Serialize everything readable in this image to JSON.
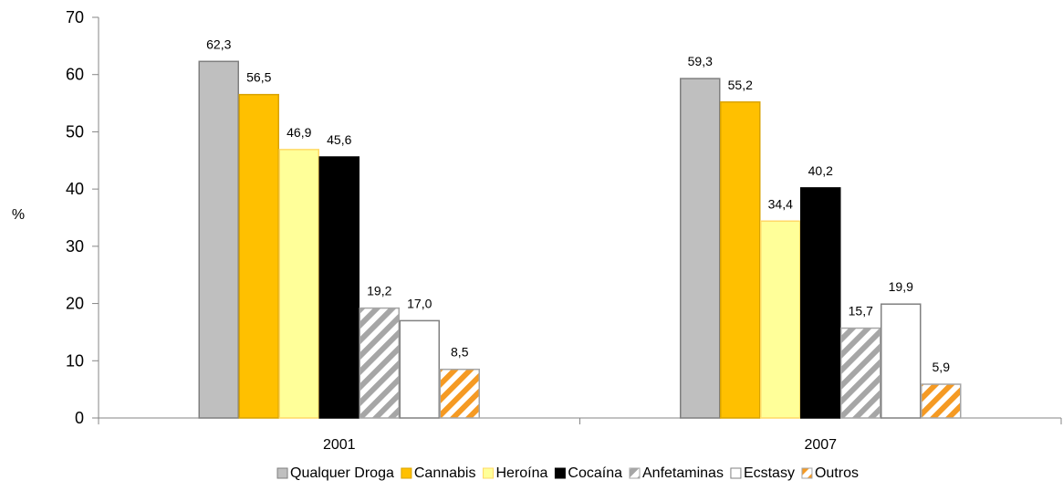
{
  "chart_data": {
    "type": "bar",
    "title": "",
    "xlabel": "",
    "ylabel": "%",
    "ylim": [
      0,
      70
    ],
    "yticks": [
      0,
      10,
      20,
      30,
      40,
      50,
      60,
      70
    ],
    "grid": false,
    "legend_position": "bottom",
    "categories": [
      "2001",
      "2007"
    ],
    "series": [
      {
        "name": "Qualquer Droga",
        "values": [
          62.3,
          59.3
        ],
        "labels": [
          "62,3",
          "59,3"
        ],
        "color": "#bfbfbf",
        "border": "#7f7f7f",
        "pattern": "solid"
      },
      {
        "name": "Cannabis",
        "values": [
          56.5,
          55.2
        ],
        "labels": [
          "56,5",
          "55,2"
        ],
        "color": "#ffc000",
        "border": "#d9a300",
        "pattern": "solid"
      },
      {
        "name": "Heroína",
        "values": [
          46.9,
          34.4
        ],
        "labels": [
          "46,9",
          "34,4"
        ],
        "color": "#ffff99",
        "border": "#ffd966",
        "pattern": "solid"
      },
      {
        "name": "Cocaína",
        "values": [
          45.6,
          40.2
        ],
        "labels": [
          "45,6",
          "40,2"
        ],
        "color": "#000000",
        "border": "#000000",
        "pattern": "solid"
      },
      {
        "name": "Anfetaminas",
        "values": [
          19.2,
          15.7
        ],
        "labels": [
          "19,2",
          "15,7"
        ],
        "color": "#a6a6a6",
        "border": "#a6a6a6",
        "pattern": "stripes"
      },
      {
        "name": "Ecstasy",
        "values": [
          17.0,
          19.9
        ],
        "labels": [
          "17,0",
          "19,9"
        ],
        "color": "#ffffff",
        "border": "#808080",
        "pattern": "solid"
      },
      {
        "name": "Outros",
        "values": [
          8.5,
          5.9
        ],
        "labels": [
          "8,5",
          "5,9"
        ],
        "color": "#f59a23",
        "border": "#a6a6a6",
        "pattern": "stripes"
      }
    ]
  }
}
